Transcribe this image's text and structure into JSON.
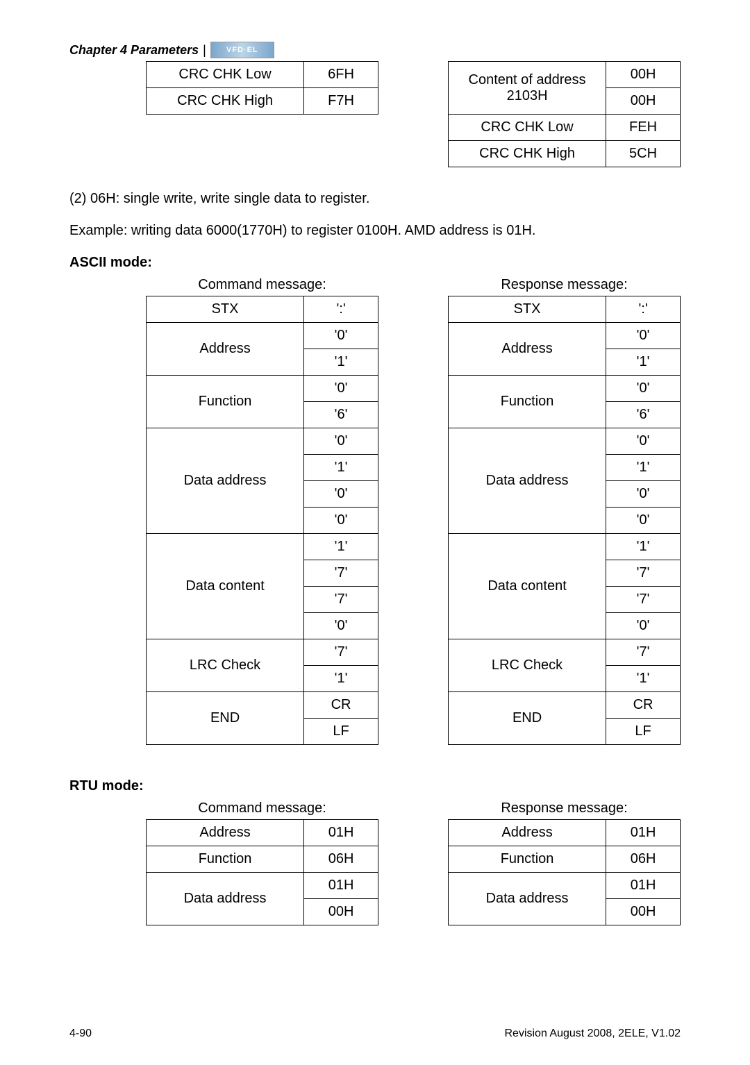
{
  "header": {
    "chapter": "Chapter 4 Parameters",
    "logo": "VFD·EL"
  },
  "top_left_table": {
    "rows": [
      {
        "label": "CRC CHK Low",
        "val": "6FH"
      },
      {
        "label": "CRC CHK High",
        "val": "F7H"
      }
    ]
  },
  "top_right_table": {
    "rows": [
      {
        "label": "Content of address 2103H",
        "span": 2,
        "vals": [
          "00H",
          "00H"
        ]
      },
      {
        "label": "CRC CHK Low",
        "val": "FEH"
      },
      {
        "label": "CRC CHK High",
        "val": "5CH"
      }
    ]
  },
  "body_text": {
    "line1": "(2) 06H: single write, write single data to register.",
    "line2": "Example: writing data 6000(1770H) to register 0100H. AMD address is 01H.",
    "ascii_heading": "ASCII mode:",
    "rtu_heading": "RTU mode:"
  },
  "ascii": {
    "cmd_caption": "Command message:",
    "resp_caption": "Response message:",
    "cmd_rows": [
      {
        "label": "STX",
        "span": 1,
        "vals": [
          "':'"
        ]
      },
      {
        "label": "Address",
        "span": 2,
        "vals": [
          "'0'",
          "'1'"
        ]
      },
      {
        "label": "Function",
        "span": 2,
        "vals": [
          "'0'",
          "'6'"
        ]
      },
      {
        "label": "Data address",
        "span": 4,
        "vals": [
          "'0'",
          "'1'",
          "'0'",
          "'0'"
        ]
      },
      {
        "label": "Data content",
        "span": 4,
        "vals": [
          "'1'",
          "'7'",
          "'7'",
          "'0'"
        ]
      },
      {
        "label": "LRC Check",
        "span": 2,
        "vals": [
          "'7'",
          "'1'"
        ]
      },
      {
        "label": "END",
        "span": 2,
        "vals": [
          "CR",
          "LF"
        ]
      }
    ],
    "resp_rows": [
      {
        "label": "STX",
        "span": 1,
        "vals": [
          "':'"
        ]
      },
      {
        "label": "Address",
        "span": 2,
        "vals": [
          "'0'",
          "'1'"
        ]
      },
      {
        "label": "Function",
        "span": 2,
        "vals": [
          "'0'",
          "'6'"
        ]
      },
      {
        "label": "Data address",
        "span": 4,
        "vals": [
          "'0'",
          "'1'",
          "'0'",
          "'0'"
        ]
      },
      {
        "label": "Data content",
        "span": 4,
        "vals": [
          "'1'",
          "'7'",
          "'7'",
          "'0'"
        ]
      },
      {
        "label": "LRC Check",
        "span": 2,
        "vals": [
          "'7'",
          "'1'"
        ]
      },
      {
        "label": "END",
        "span": 2,
        "vals": [
          "CR",
          "LF"
        ]
      }
    ]
  },
  "rtu": {
    "cmd_caption": "Command message:",
    "resp_caption": "Response message:",
    "cmd_rows": [
      {
        "label": "Address",
        "span": 1,
        "vals": [
          "01H"
        ]
      },
      {
        "label": "Function",
        "span": 1,
        "vals": [
          "06H"
        ]
      },
      {
        "label": "Data address",
        "span": 2,
        "vals": [
          "01H",
          "00H"
        ]
      }
    ],
    "resp_rows": [
      {
        "label": "Address",
        "span": 1,
        "vals": [
          "01H"
        ]
      },
      {
        "label": "Function",
        "span": 1,
        "vals": [
          "06H"
        ]
      },
      {
        "label": "Data address",
        "span": 2,
        "vals": [
          "01H",
          "00H"
        ]
      }
    ]
  },
  "footer": {
    "left": "4-90",
    "right": "Revision August 2008, 2ELE, V1.02"
  }
}
